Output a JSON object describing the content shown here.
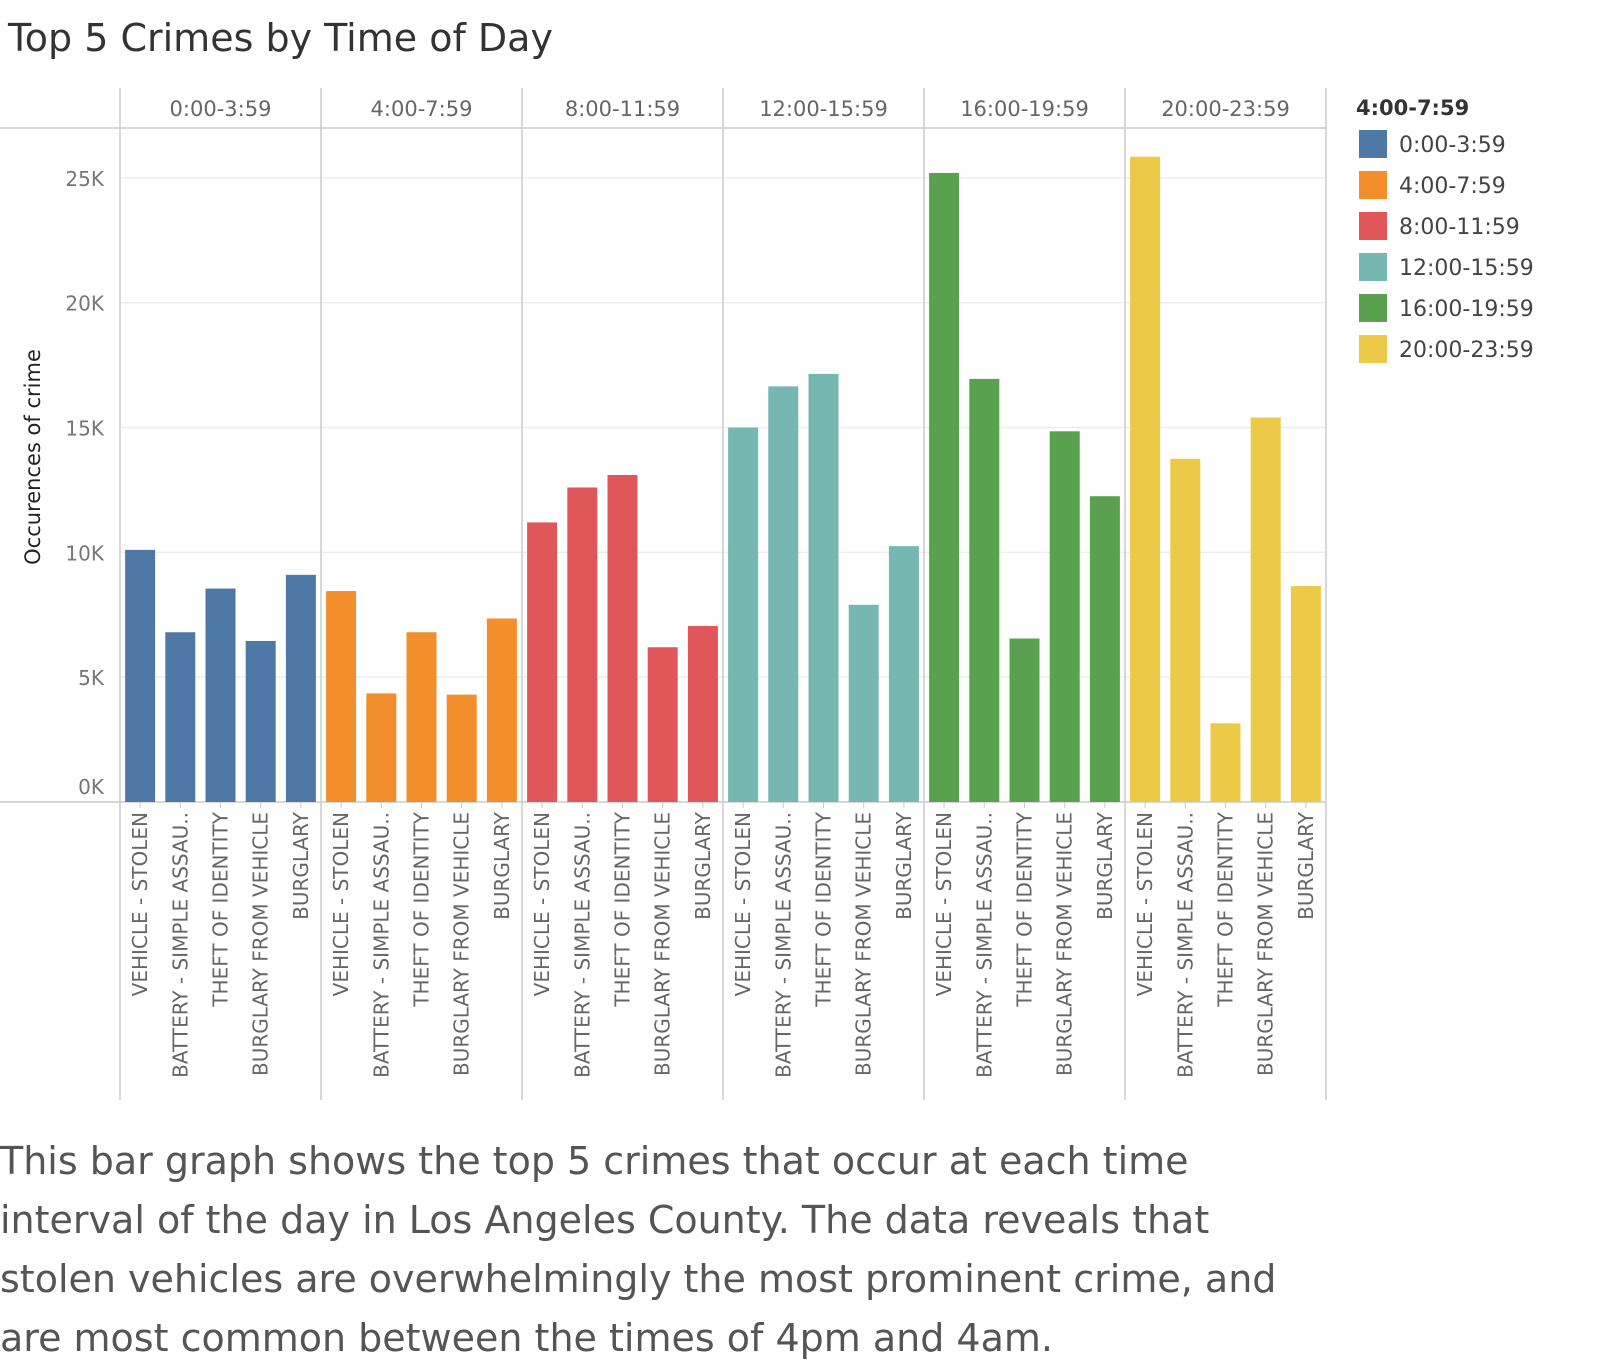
{
  "title": "Top 5 Crimes by Time of Day",
  "caption": "This bar graph shows the top 5 crimes that occur at each time interval of the day in Los Angeles County. The data reveals that stolen vehicles are overwhelmingly the most prominent crime, and are most common between the times of 4pm and 4am.",
  "legend": {
    "title": "4:00-7:59"
  },
  "chart_data": {
    "type": "bar",
    "title": "Top 5 Crimes by Time of Day",
    "xlabel": "",
    "ylabel": "Occurences of crime",
    "ylim": [
      0,
      27000
    ],
    "yticks": [
      0,
      5000,
      10000,
      15000,
      20000,
      25000
    ],
    "ytick_labels": [
      "0K",
      "5K",
      "10K",
      "15K",
      "20K",
      "25K"
    ],
    "grid": true,
    "legend_position": "right",
    "categories": [
      "VEHICLE - STOLEN",
      "BATTERY - SIMPLE ASSAU..",
      "THEFT OF IDENTITY",
      "BURGLARY FROM VEHICLE",
      "BURGLARY"
    ],
    "series": [
      {
        "name": "0:00-3:59",
        "color": "#4e79a7",
        "values": [
          10100,
          6800,
          8550,
          6450,
          9100
        ]
      },
      {
        "name": "4:00-7:59",
        "color": "#f28e2b",
        "values": [
          8450,
          4350,
          6800,
          4300,
          7350
        ]
      },
      {
        "name": "8:00-11:59",
        "color": "#e15759",
        "values": [
          11200,
          12600,
          13100,
          6200,
          7050
        ]
      },
      {
        "name": "12:00-15:59",
        "color": "#76b7b2",
        "values": [
          15000,
          16650,
          17150,
          7900,
          10250
        ]
      },
      {
        "name": "16:00-19:59",
        "color": "#59a14f",
        "values": [
          25200,
          16950,
          6550,
          14850,
          12250
        ]
      },
      {
        "name": "20:00-23:59",
        "color": "#edc948",
        "values": [
          25850,
          13750,
          3150,
          15400,
          8650
        ]
      }
    ]
  }
}
